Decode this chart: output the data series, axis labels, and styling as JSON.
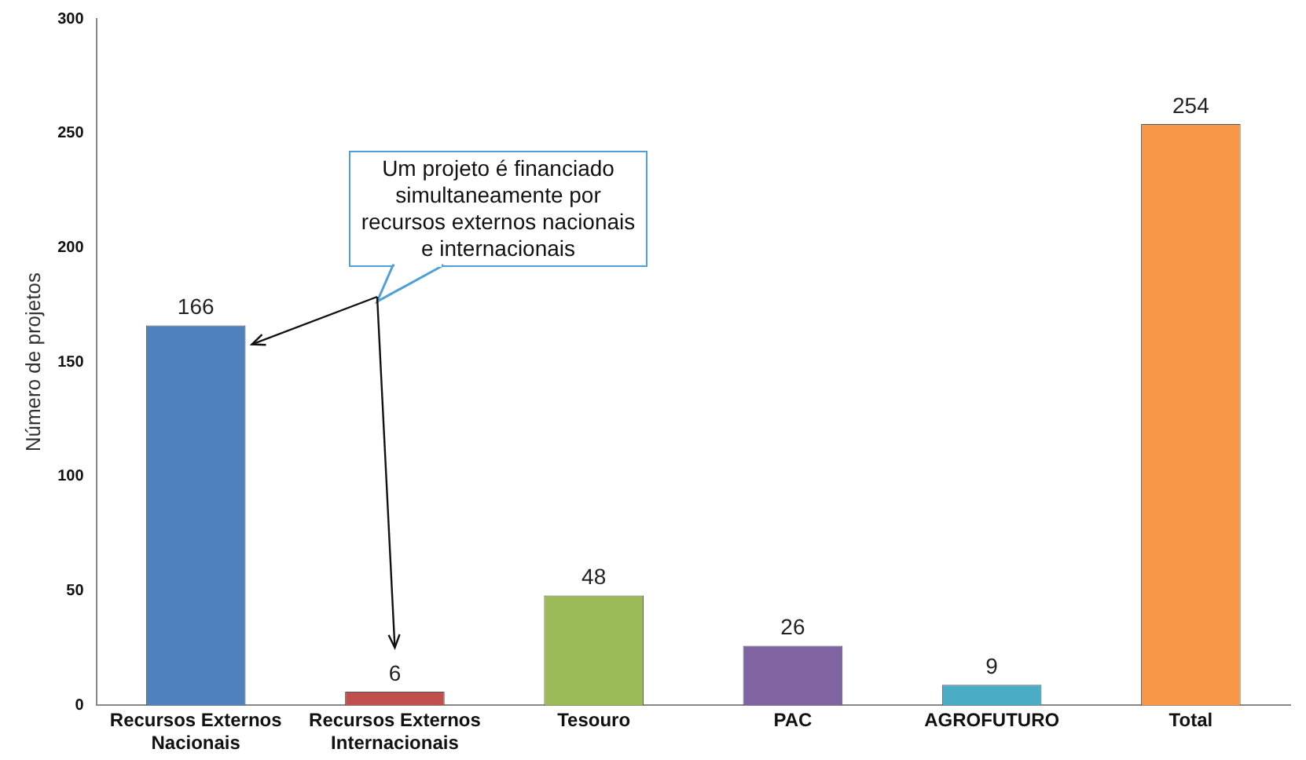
{
  "chart_data": {
    "type": "bar",
    "categories": [
      "Recursos Externos Nacionais",
      "Recursos Externos Internacionais",
      "Tesouro",
      "PAC",
      "AGROFUTURO",
      "Total"
    ],
    "values": [
      166,
      6,
      48,
      26,
      9,
      254
    ],
    "colors": [
      "#4f81bd",
      "#c0504d",
      "#9bbb59",
      "#8064a2",
      "#4bacc6",
      "#f79646"
    ],
    "ylabel": "Número de projetos",
    "ylim": [
      0,
      300
    ],
    "yticks": [
      0,
      50,
      100,
      150,
      200,
      250,
      300
    ],
    "grid": false,
    "legend": false,
    "data_labels": true,
    "annotations": [
      "Um projeto é financiado simultaneamente por recursos externos nacionais e internacionais"
    ]
  }
}
